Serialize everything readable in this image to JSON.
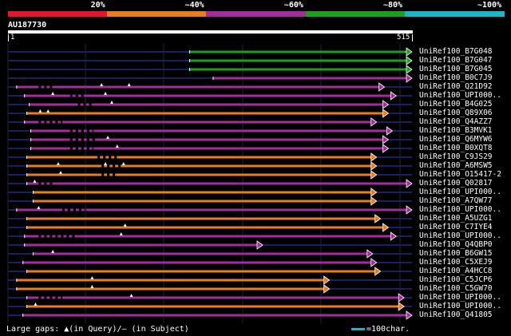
{
  "legend": {
    "segments": [
      {
        "label": "20%",
        "color": "#e8142c"
      },
      {
        "label": "~40%",
        "color": "#e87c1f"
      },
      {
        "label": "~60%",
        "color": "#a32d9b"
      },
      {
        "label": "~80%",
        "color": "#1f9e1f"
      },
      {
        "label": "~100%",
        "color": "#19b7c6"
      }
    ]
  },
  "query": {
    "id": "AU187730",
    "start": "1",
    "end": "515",
    "length": 515
  },
  "hits": [
    {
      "name": "UniRef100_B7G048",
      "color": "#1f9e1f",
      "qs": 232,
      "qe": 515,
      "dashes": [],
      "tri": []
    },
    {
      "name": "UniRef100_B7G047",
      "color": "#1f9e1f",
      "qs": 232,
      "qe": 515,
      "dashes": [],
      "tri": []
    },
    {
      "name": "UniRef100_B7G045",
      "color": "#1f9e1f",
      "qs": 232,
      "qe": 515,
      "dashes": [],
      "tri": []
    },
    {
      "name": "UniRef100_B0C7J9",
      "color": "#a32d9b",
      "qs": 262,
      "qe": 515,
      "dashes": [],
      "tri": []
    },
    {
      "name": "UniRef100_Q21D92",
      "color": "#a32d9b",
      "qs": 12,
      "qe": 480,
      "dashes": [
        [
          40,
          60
        ]
      ],
      "tri": [
        120,
        155
      ]
    },
    {
      "name": "UniRef100_UPI000..",
      "color": "#a32d9b",
      "qs": 22,
      "qe": 495,
      "dashes": [
        [
          80,
          100
        ]
      ],
      "tri": [
        58,
        125
      ]
    },
    {
      "name": "UniRef100_B4G025",
      "color": "#a32d9b",
      "qs": 28,
      "qe": 485,
      "dashes": [
        [
          90,
          110
        ]
      ],
      "tri": [
        133
      ]
    },
    {
      "name": "UniRef100_Q89X06",
      "color": "#e87c1f",
      "qs": 25,
      "qe": 485,
      "dashes": [],
      "tri": [
        42,
        52
      ]
    },
    {
      "name": "UniRef100_Q4AZZ7",
      "color": "#a32d9b",
      "qs": 22,
      "qe": 470,
      "dashes": [
        [
          40,
          70
        ]
      ],
      "tri": []
    },
    {
      "name": "UniRef100_B3MVK1",
      "color": "#a32d9b",
      "qs": 30,
      "qe": 490,
      "dashes": [
        [
          80,
          110
        ]
      ],
      "tri": []
    },
    {
      "name": "UniRef100_Q6MYW6",
      "color": "#a32d9b",
      "qs": 30,
      "qe": 485,
      "dashes": [
        [
          80,
          115
        ]
      ],
      "tri": [
        128
      ]
    },
    {
      "name": "UniRef100_B0XQT8",
      "color": "#a32d9b",
      "qs": 30,
      "qe": 485,
      "dashes": [
        [
          80,
          110
        ]
      ],
      "tri": [
        140
      ]
    },
    {
      "name": "UniRef100_C9JS29",
      "color": "#e87c1f",
      "qs": 25,
      "qe": 470,
      "dashes": [
        [
          115,
          140
        ]
      ],
      "tri": []
    },
    {
      "name": "UniRef100_A6MSW5",
      "color": "#e87c1f",
      "qs": 25,
      "qe": 470,
      "dashes": [
        [
          120,
          145
        ]
      ],
      "tri": [
        65,
        125,
        148
      ]
    },
    {
      "name": "UniRef100_O15417-2",
      "color": "#e87c1f",
      "qs": 25,
      "qe": 470,
      "dashes": [
        [
          120,
          140
        ]
      ],
      "tri": [
        68
      ]
    },
    {
      "name": "UniRef100_Q02817",
      "color": "#a32d9b",
      "qs": 25,
      "qe": 515,
      "dashes": [
        [
          40,
          60
        ]
      ],
      "tri": [
        35
      ]
    },
    {
      "name": "UniRef100_UPI000..",
      "color": "#e87c1f",
      "qs": 33,
      "qe": 470,
      "dashes": [],
      "tri": []
    },
    {
      "name": "UniRef100_A7QW77",
      "color": "#e87c1f",
      "qs": 33,
      "qe": 470,
      "dashes": [],
      "tri": []
    },
    {
      "name": "UniRef100_UPI000..",
      "color": "#a32d9b",
      "qs": 12,
      "qe": 515,
      "dashes": [
        [
          70,
          100
        ]
      ],
      "tri": [
        40
      ]
    },
    {
      "name": "UniRef100_A5UZG1",
      "color": "#e87c1f",
      "qs": 25,
      "qe": 475,
      "dashes": [],
      "tri": []
    },
    {
      "name": "UniRef100_C7IYE4",
      "color": "#e87c1f",
      "qs": 25,
      "qe": 485,
      "dashes": [],
      "tri": [
        150
      ]
    },
    {
      "name": "UniRef100_UPI000..",
      "color": "#a32d9b",
      "qs": 22,
      "qe": 495,
      "dashes": [
        [
          40,
          90
        ]
      ],
      "tri": [
        145
      ]
    },
    {
      "name": "UniRef100_Q4QBP0",
      "color": "#a32d9b",
      "qs": 22,
      "qe": 325,
      "dashes": [],
      "tri": []
    },
    {
      "name": "UniRef100_B6GW15",
      "color": "#a32d9b",
      "qs": 33,
      "qe": 465,
      "dashes": [],
      "tri": [
        58
      ]
    },
    {
      "name": "UniRef100_C5XEJ9",
      "color": "#a32d9b",
      "qs": 20,
      "qe": 470,
      "dashes": [],
      "tri": []
    },
    {
      "name": "UniRef100_A4HCC8",
      "color": "#e87c1f",
      "qs": 25,
      "qe": 475,
      "dashes": [],
      "tri": []
    },
    {
      "name": "UniRef100_C5JCP6",
      "color": "#e87c1f",
      "qs": 12,
      "qe": 410,
      "dashes": [],
      "tri": [
        108
      ]
    },
    {
      "name": "UniRef100_C5GW70",
      "color": "#e87c1f",
      "qs": 12,
      "qe": 410,
      "dashes": [],
      "tri": [
        108
      ]
    },
    {
      "name": "UniRef100_UPI000..",
      "color": "#a32d9b",
      "qs": 25,
      "qe": 505,
      "dashes": [
        [
          40,
          70
        ]
      ],
      "tri": [
        158
      ]
    },
    {
      "name": "UniRef100_UPI000..",
      "color": "#e87c1f",
      "qs": 25,
      "qe": 505,
      "dashes": [],
      "tri": [
        36
      ]
    },
    {
      "name": "UniRef100_Q41805",
      "color": "#a32d9b",
      "qs": 20,
      "qe": 515,
      "dashes": [],
      "tri": []
    }
  ],
  "footer": {
    "gaps_text": "Large gaps: ▲(in Query)/— (in Subject)",
    "scale_text": "=100char."
  }
}
